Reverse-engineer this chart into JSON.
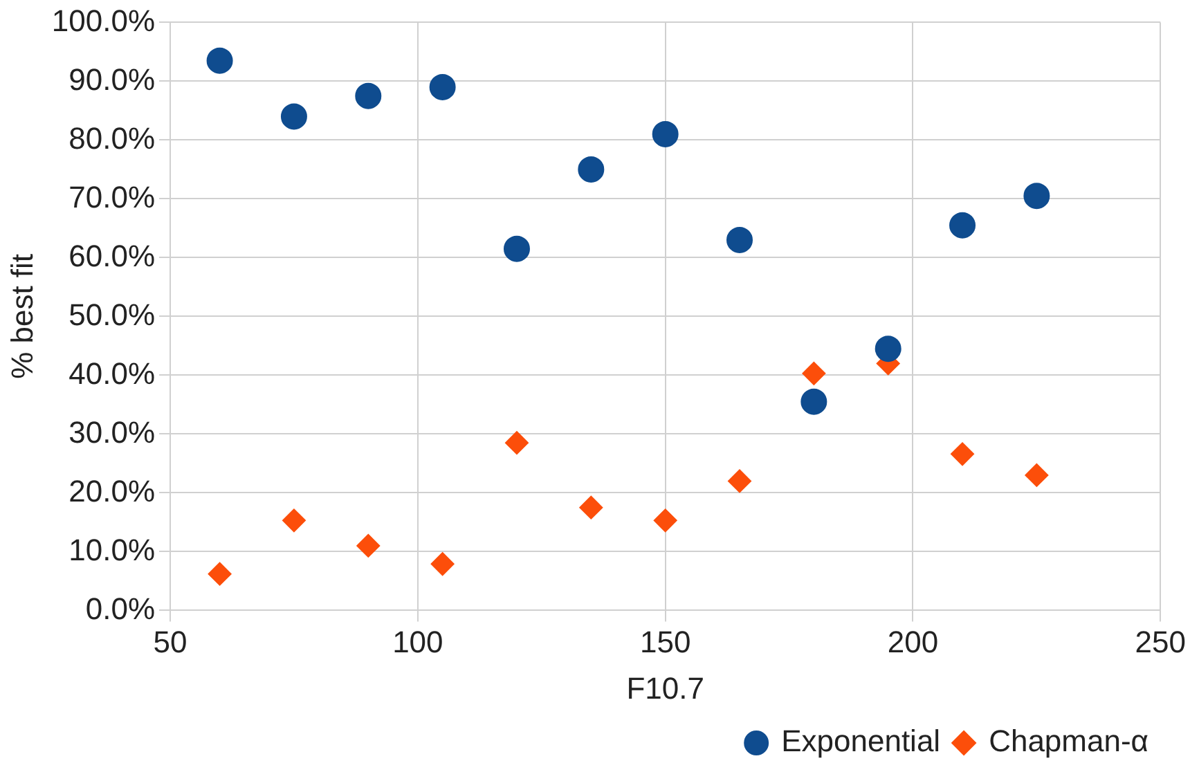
{
  "chart_data": {
    "type": "scatter",
    "xlabel": "F10.7",
    "ylabel": "% best fit",
    "xlim": [
      50,
      250
    ],
    "xticks": [
      50,
      100,
      150,
      200,
      250
    ],
    "ylim": [
      0,
      100
    ],
    "yticks": [
      {
        "value": 0,
        "label": "0.0%"
      },
      {
        "value": 10,
        "label": "10.0%"
      },
      {
        "value": 20,
        "label": "20.0%"
      },
      {
        "value": 30,
        "label": "30.0%"
      },
      {
        "value": 40,
        "label": "40.0%"
      },
      {
        "value": 50,
        "label": "50.0%"
      },
      {
        "value": 60,
        "label": "60.0%"
      },
      {
        "value": 70,
        "label": "70.0%"
      },
      {
        "value": 80,
        "label": "80.0%"
      },
      {
        "value": 90,
        "label": "90.0%"
      },
      {
        "value": 100,
        "label": "100.0%"
      }
    ],
    "grid": true,
    "legend": "bottom right",
    "x": [
      60,
      75,
      90,
      105,
      120,
      135,
      150,
      165,
      180,
      195,
      210,
      225
    ],
    "series": [
      {
        "name": "Exponential",
        "color": "#0f4c8f",
        "marker": "circle",
        "values": [
          93.5,
          84,
          87.5,
          89,
          61.5,
          75,
          81,
          63,
          35.5,
          44.5,
          65.5,
          70.5
        ]
      },
      {
        "name": "Chapman-α",
        "color": "#fc4e0a",
        "marker": "diamond",
        "values": [
          6.2,
          15.3,
          11,
          7.9,
          28.5,
          17.5,
          15.3,
          22,
          40.3,
          42,
          26.6,
          23
        ]
      }
    ]
  }
}
